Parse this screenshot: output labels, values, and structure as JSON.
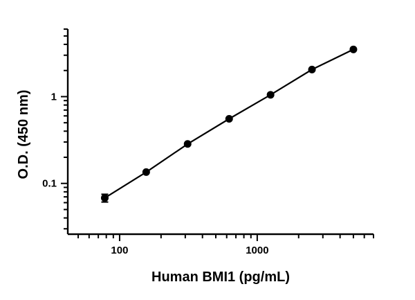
{
  "chart_data": {
    "type": "scatter",
    "xlabel": "Human BMI1 (pg/mL)",
    "ylabel": "O.D. (450 nm)",
    "x_scale": "log",
    "y_scale": "log",
    "xlim": [
      42,
      7000
    ],
    "ylim": [
      0.026,
      6.0
    ],
    "x_ticks": [
      {
        "value": 100,
        "label": "100"
      },
      {
        "value": 1000,
        "label": "1000"
      }
    ],
    "y_ticks": [
      {
        "value": 0.1,
        "label": "0.1"
      },
      {
        "value": 1,
        "label": "1"
      }
    ],
    "grid": false,
    "fit_line": true,
    "series": [
      {
        "points": [
          {
            "x": 78,
            "y": 0.068,
            "err": 0.007
          },
          {
            "x": 156,
            "y": 0.135
          },
          {
            "x": 312,
            "y": 0.285
          },
          {
            "x": 625,
            "y": 0.555
          },
          {
            "x": 1250,
            "y": 1.05
          },
          {
            "x": 2500,
            "y": 2.05
          },
          {
            "x": 5000,
            "y": 3.5
          }
        ]
      }
    ]
  }
}
